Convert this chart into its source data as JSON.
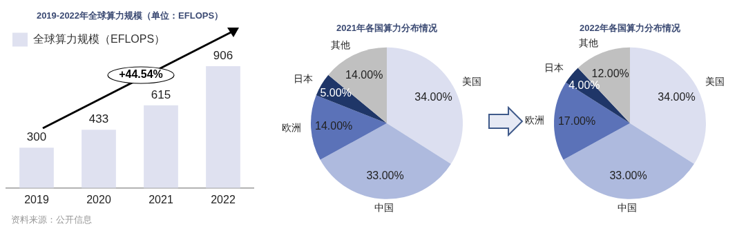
{
  "chart_data": [
    {
      "type": "bar",
      "title": "2019-2022年全球算力规模（单位：EFLOPS）",
      "categories": [
        "2019",
        "2020",
        "2021",
        "2022"
      ],
      "series": [
        {
          "name": "全球算力规模（EFLOPS）",
          "color": "#dfe1f0",
          "values": [
            300,
            433,
            615,
            906
          ]
        }
      ],
      "data_labels": true,
      "legend": "top left",
      "grid": false,
      "annotations": [
        "+44.54%",
        "资料来源：公开信息"
      ]
    },
    {
      "type": "pie",
      "title": "2021年各国算力分布情况",
      "categories": [
        "美国",
        "中国",
        "欧洲",
        "日本",
        "其他"
      ],
      "values": [
        34,
        33,
        14,
        5,
        14
      ],
      "colors": [
        "#dcdff0",
        "#aebade",
        "#5b72b8",
        "#1f3668",
        "#c0c0c0"
      ],
      "value_labels": [
        "34.00%",
        "33.00%",
        "14.00%",
        "5.00%",
        "14.00%"
      ],
      "legend": false
    },
    {
      "type": "pie",
      "title": "2022年各国算力分布情况",
      "categories": [
        "美国",
        "中国",
        "欧洲",
        "日本",
        "其他"
      ],
      "values": [
        34,
        33,
        17,
        4,
        12
      ],
      "colors": [
        "#dcdff0",
        "#aebade",
        "#5b72b8",
        "#1f3668",
        "#c0c0c0"
      ],
      "value_labels": [
        "34.00%",
        "33.00%",
        "17.00%",
        "4.00%",
        "12.00%"
      ],
      "legend": false
    }
  ]
}
